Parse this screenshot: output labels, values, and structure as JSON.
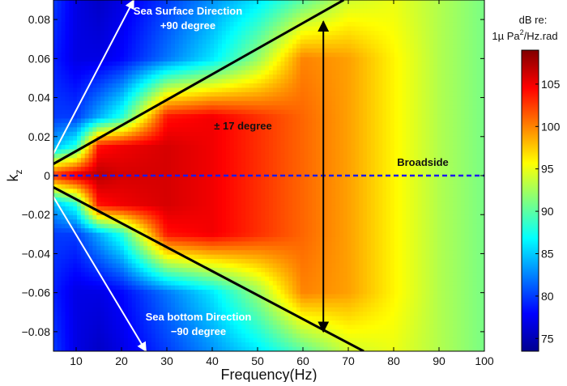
{
  "chart_data": {
    "type": "heatmap",
    "xlabel": "Frequency(Hz)",
    "ylabel": "k",
    "ylabel_sub": "z",
    "xlim": [
      5,
      100
    ],
    "ylim": [
      -0.09,
      0.09
    ],
    "xticks": [
      10,
      20,
      30,
      40,
      50,
      60,
      70,
      80,
      90,
      100
    ],
    "xtick_labels": [
      "10",
      "20",
      "30",
      "40",
      "50",
      "60",
      "70",
      "80",
      "90",
      "100"
    ],
    "yticks": [
      0.08,
      0.06,
      0.04,
      0.02,
      0,
      -0.02,
      -0.04,
      -0.06,
      -0.08
    ],
    "ytick_labels": [
      "0.08",
      "0.06",
      "0.04",
      "0.02",
      "0",
      "−0.02",
      "−0.04",
      "−0.06",
      "−0.08"
    ],
    "colormap": "jet",
    "colorbar": {
      "title_line1": "dB re:",
      "title_line2_prefix": "1µ Pa",
      "title_line2_sup": "2",
      "title_line2_suffix": "/Hz.rad",
      "clim": [
        73.5,
        109
      ],
      "ticks": [
        75,
        80,
        85,
        90,
        95,
        100,
        105
      ],
      "tick_labels": [
        "75",
        "80",
        "85",
        "90",
        "95",
        "100",
        "105"
      ]
    },
    "grid": false,
    "frequencies": [
      5,
      10,
      15,
      20,
      30,
      40,
      50,
      60,
      70,
      80,
      90,
      100
    ],
    "kz": [
      -0.09,
      -0.06,
      -0.03,
      -0.015,
      0,
      0.015,
      0.03,
      0.06,
      0.09
    ],
    "values_db": [
      [
        80,
        77,
        76,
        77,
        80,
        83,
        86,
        90,
        94,
        95,
        93,
        91
      ],
      [
        79,
        77,
        77,
        78,
        82,
        86,
        92,
        100,
        99,
        96,
        93,
        91
      ],
      [
        80,
        80,
        84,
        88,
        104,
        105,
        103,
        101,
        99,
        96,
        93,
        91
      ],
      [
        84,
        88,
        104,
        105,
        106,
        105,
        103,
        101,
        99,
        96,
        93,
        91
      ],
      [
        103,
        106,
        107,
        106,
        106,
        105,
        103,
        101,
        99,
        96,
        93,
        91
      ],
      [
        84,
        88,
        104,
        105,
        106,
        105,
        103,
        101,
        99,
        96,
        93,
        91
      ],
      [
        80,
        80,
        84,
        88,
        104,
        105,
        103,
        101,
        99,
        96,
        93,
        91
      ],
      [
        79,
        77,
        77,
        78,
        82,
        86,
        92,
        100,
        99,
        96,
        93,
        91
      ],
      [
        80,
        77,
        76,
        77,
        80,
        83,
        86,
        90,
        94,
        95,
        93,
        91
      ]
    ],
    "annotations": {
      "surface_line1": "Sea Surface Direction",
      "surface_line2": "+90 degree",
      "bottom_line1": "Sea bottom Direction",
      "bottom_line2": "−90 degree",
      "wedge": "± 17 degree",
      "broadside": "Broadside"
    },
    "overlay_lines": {
      "wedge_upper": [
        [
          5,
          0.006
        ],
        [
          69,
          0.09
        ]
      ],
      "wedge_lower": [
        [
          5,
          -0.006
        ],
        [
          73.4,
          -0.09
        ]
      ],
      "surface_arrow": [
        [
          4.5,
          0.009
        ],
        [
          22.7,
          0.09
        ]
      ],
      "bottom_arrow": [
        [
          4.5,
          -0.009
        ],
        [
          25.4,
          -0.09
        ]
      ],
      "span_arrow": [
        [
          64.5,
          0.079
        ],
        [
          64.5,
          -0.08
        ]
      ],
      "broadside_kz": 0,
      "broadside_color": "#1a1aee",
      "arrow_color_white": "#ffffff",
      "line_color": "#000000"
    }
  }
}
